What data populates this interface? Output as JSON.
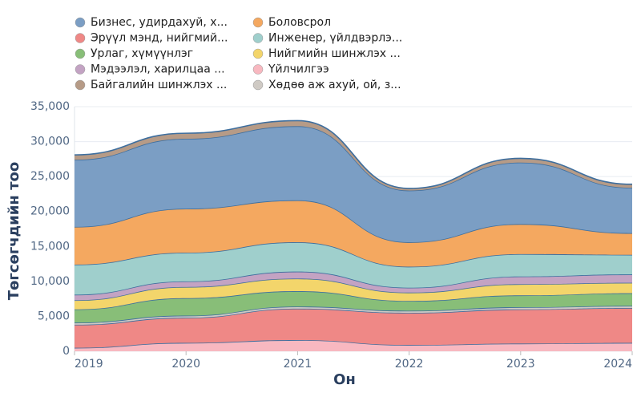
{
  "chart_data": {
    "type": "stacked_area",
    "x": [
      2019,
      2020,
      2021,
      2022,
      2023,
      2024
    ],
    "xlim": [
      2019,
      2024
    ],
    "xticks": [
      2019,
      2020,
      2021,
      2022,
      2023,
      2024
    ],
    "ylim": [
      0,
      35000
    ],
    "yticks": [
      0,
      {
        "value": 5000,
        "label": "5,000"
      },
      {
        "value": 10000,
        "label": "10,000"
      },
      {
        "value": 15000,
        "label": "15,000"
      },
      {
        "value": 20000,
        "label": "20,000"
      },
      {
        "value": 25000,
        "label": "25,000"
      },
      {
        "value": 30000,
        "label": "30,000"
      },
      {
        "value": 35000,
        "label": "35,000"
      }
    ],
    "grid": true,
    "x_label": "Он",
    "y_label": "Төгсөгчдийн тоо",
    "series": [
      {
        "name": "Бизнес, удирдахуй, х...",
        "color": "#7b9ec4",
        "values": [
          9600,
          10000,
          10600,
          7400,
          8800,
          6500
        ]
      },
      {
        "name": "Боловсрол",
        "color": "#f4a860",
        "values": [
          5400,
          6300,
          6000,
          3500,
          4300,
          3100
        ]
      },
      {
        "name": "Эрүүл мэнд, нийгмий...",
        "color": "#ef8886",
        "values": [
          3300,
          3600,
          4500,
          4600,
          4900,
          5000
        ]
      },
      {
        "name": "Инженер, үйлдвэрлэ...",
        "color": "#9fcfcc",
        "values": [
          4300,
          4100,
          4200,
          3000,
          3200,
          2800
        ]
      },
      {
        "name": "Урлаг, хүмүүнлэг",
        "color": "#88be78",
        "values": [
          1900,
          2500,
          2200,
          1400,
          1700,
          1800
        ]
      },
      {
        "name": "Нийгмийн шинжлэх ...",
        "color": "#f3d56b",
        "values": [
          1300,
          1600,
          1800,
          1200,
          1600,
          1500
        ]
      },
      {
        "name": "Мэдээлэл, харилцаа ...",
        "color": "#c3a3c3",
        "values": [
          800,
          800,
          1000,
          700,
          1100,
          1200
        ]
      },
      {
        "name": "Үйлчилгээ",
        "color": "#f8b8c0",
        "values": [
          500,
          1200,
          1600,
          900,
          1100,
          1200
        ]
      },
      {
        "name": "Байгалийн шинжлэх ...",
        "color": "#b69b87",
        "values": [
          700,
          800,
          800,
          300,
          600,
          500
        ]
      },
      {
        "name": "Хөдөө аж ахуй, ой, з...",
        "color": "#cfcac4",
        "values": [
          300,
          300,
          300,
          300,
          300,
          300
        ]
      }
    ]
  }
}
